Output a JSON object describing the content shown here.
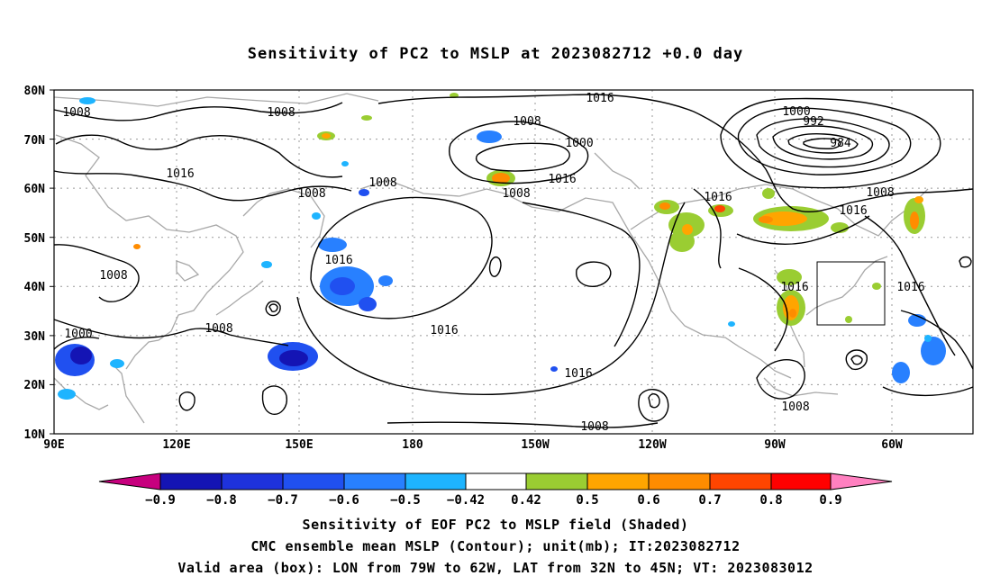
{
  "title": "Sensitivity of PC2 to MSLP at 2023082712 +0.0 day",
  "map": {
    "lat_labels": [
      "80N",
      "70N",
      "60N",
      "50N",
      "40N",
      "30N",
      "20N",
      "10N"
    ],
    "lon_labels": [
      "90E",
      "120E",
      "150E",
      "180",
      "150W",
      "120W",
      "90W",
      "60W"
    ],
    "contour_labels": [
      {
        "text": "1008"
      },
      {
        "text": "1008"
      },
      {
        "text": "1016"
      },
      {
        "text": "1008"
      },
      {
        "text": "1008"
      },
      {
        "text": "1016"
      },
      {
        "text": "1016"
      },
      {
        "text": "1008"
      },
      {
        "text": "1000"
      },
      {
        "text": "1016"
      },
      {
        "text": "1008"
      },
      {
        "text": "1016"
      },
      {
        "text": "1000"
      },
      {
        "text": "992"
      },
      {
        "text": "984"
      },
      {
        "text": "1008"
      },
      {
        "text": "1016"
      },
      {
        "text": "1016"
      },
      {
        "text": "1016"
      },
      {
        "text": "1000"
      },
      {
        "text": "1008"
      },
      {
        "text": "1008"
      },
      {
        "text": "1016"
      },
      {
        "text": "1016"
      },
      {
        "text": "1008"
      },
      {
        "text": "1008"
      }
    ],
    "valid_box": {
      "lon_from": "79W",
      "lon_to": "62W",
      "lat_from": "32N",
      "lat_to": "45N"
    }
  },
  "colorbar": {
    "labels": [
      "−0.9",
      "−0.8",
      "−0.7",
      "−0.6",
      "−0.5",
      "−0.42",
      "0.42",
      "0.5",
      "0.6",
      "0.7",
      "0.8",
      "0.9"
    ],
    "colors": [
      "#c7007e",
      "#1414b4",
      "#1e32dc",
      "#2050f0",
      "#2880ff",
      "#1eb4ff",
      "#ffffff",
      "#9acd32",
      "#ffa500",
      "#ff8c00",
      "#ff4500",
      "#ff0000",
      "#ff80c0"
    ]
  },
  "captions": {
    "line1": "Sensitivity of EOF PC2 to MSLP field (Shaded)",
    "line2": "CMC ensemble mean MSLP (Contour); unit(mb); IT:2023082712",
    "line3": "Valid area (box): LON from 79W to 62W, LAT from 32N to 45N; VT: 2023083012"
  }
}
